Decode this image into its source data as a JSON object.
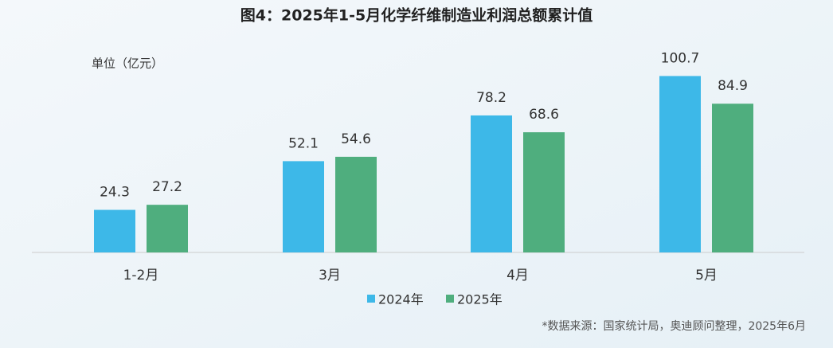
{
  "chart_data": {
    "type": "bar",
    "title": "图4：2025年1-5月化学纤维制造业利润总额累计值",
    "unit_label": "单位（亿元）",
    "categories": [
      "1-2月",
      "3月",
      "4月",
      "5月"
    ],
    "series": [
      {
        "name": "2024年",
        "color": "#3db8e8",
        "values": [
          24.3,
          52.1,
          78.2,
          100.7
        ]
      },
      {
        "name": "2025年",
        "color": "#4fae7e",
        "values": [
          27.2,
          54.6,
          68.6,
          84.9
        ]
      }
    ],
    "source": "*数据来源：国家统计局，奥迪顾问整理，2025年6月",
    "grid": false
  }
}
